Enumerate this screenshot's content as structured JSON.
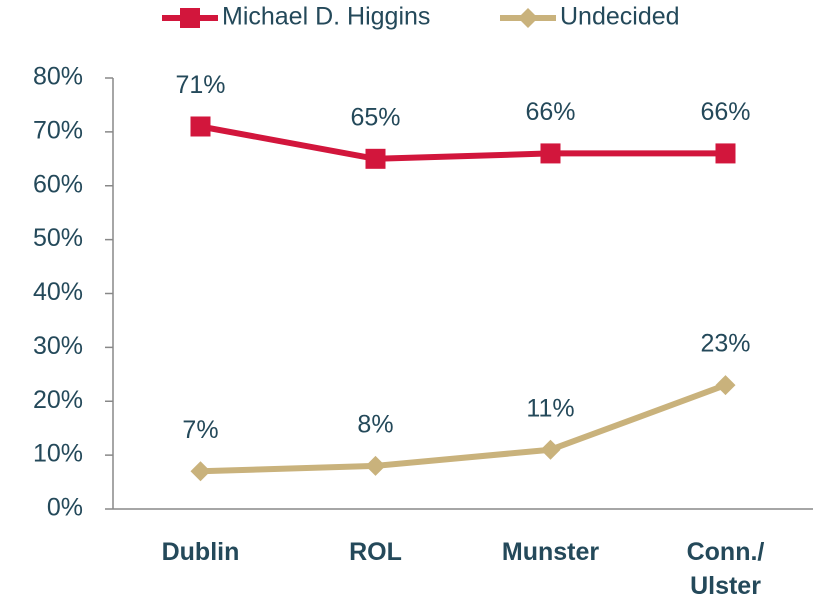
{
  "chart_data": {
    "type": "line",
    "categories": [
      "Dublin",
      "ROL",
      "Munster",
      "Conn./ Ulster"
    ],
    "series": [
      {
        "name": "Michael D. Higgins",
        "color": "#d2163c",
        "marker": "square",
        "values": [
          71,
          65,
          66,
          66
        ],
        "value_labels": [
          "71%",
          "65%",
          "66%",
          "66%"
        ]
      },
      {
        "name": "Undecided",
        "color": "#c9b27c",
        "marker": "diamond",
        "values": [
          7,
          8,
          11,
          23
        ],
        "value_labels": [
          "7%",
          "8%",
          "11%",
          "23%"
        ]
      }
    ],
    "ylim": [
      0,
      80
    ],
    "yticks": [
      {
        "value": 0,
        "label": "0%"
      },
      {
        "value": 10,
        "label": "10%"
      },
      {
        "value": 20,
        "label": "20%"
      },
      {
        "value": 30,
        "label": "30%"
      },
      {
        "value": 40,
        "label": "40%"
      },
      {
        "value": 50,
        "label": "50%"
      },
      {
        "value": 60,
        "label": "60%"
      },
      {
        "value": 70,
        "label": "70%"
      },
      {
        "value": 80,
        "label": "80%"
      }
    ],
    "grid": false,
    "legend": "top"
  }
}
